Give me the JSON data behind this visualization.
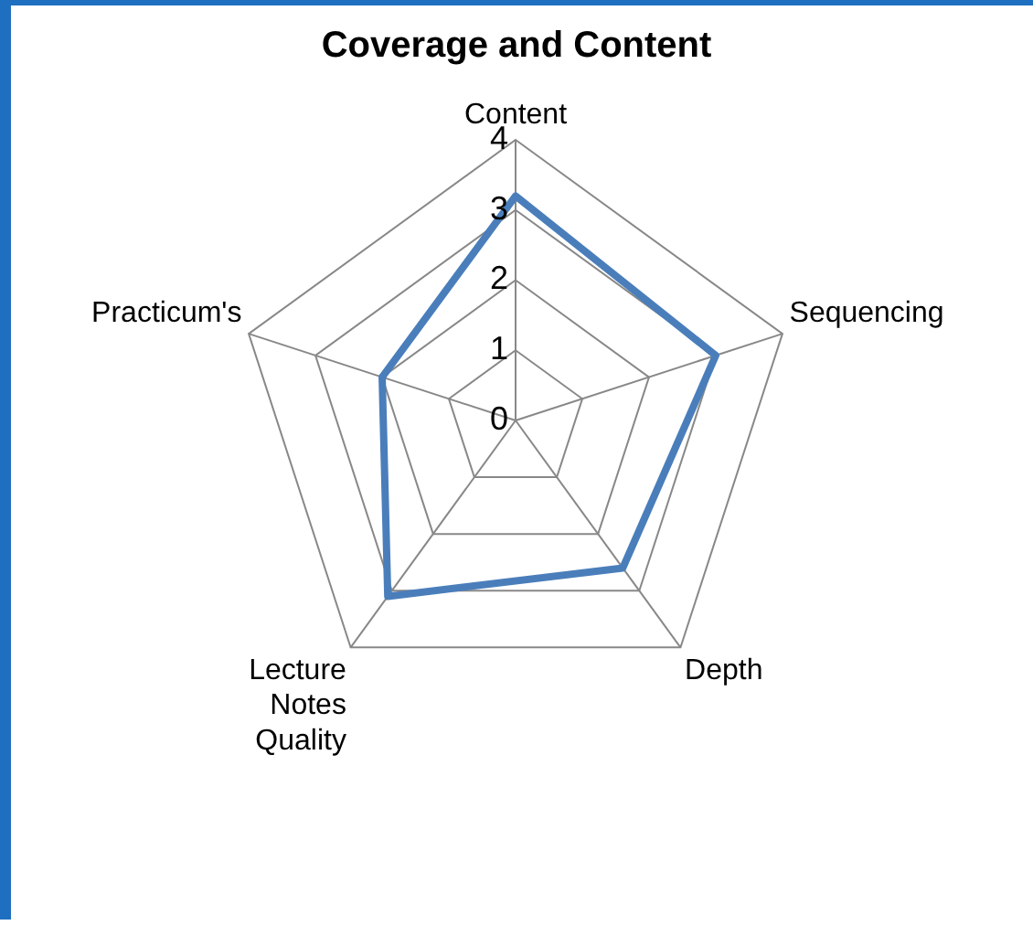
{
  "chart_data": {
    "type": "radar",
    "title": "Coverage and Content",
    "categories": [
      "Content",
      "Sequencing",
      "Depth",
      "Lecture Notes Quality",
      "Practicum's"
    ],
    "series": [
      {
        "color": "#4a7ebb",
        "values": [
          3.2,
          3.0,
          2.6,
          3.1,
          2.0
        ]
      }
    ],
    "ylim": [
      0,
      4
    ],
    "yticks": [
      0,
      1,
      2,
      3,
      4
    ],
    "grid": true,
    "legend": false,
    "marker": "none",
    "line_style": "solid"
  }
}
